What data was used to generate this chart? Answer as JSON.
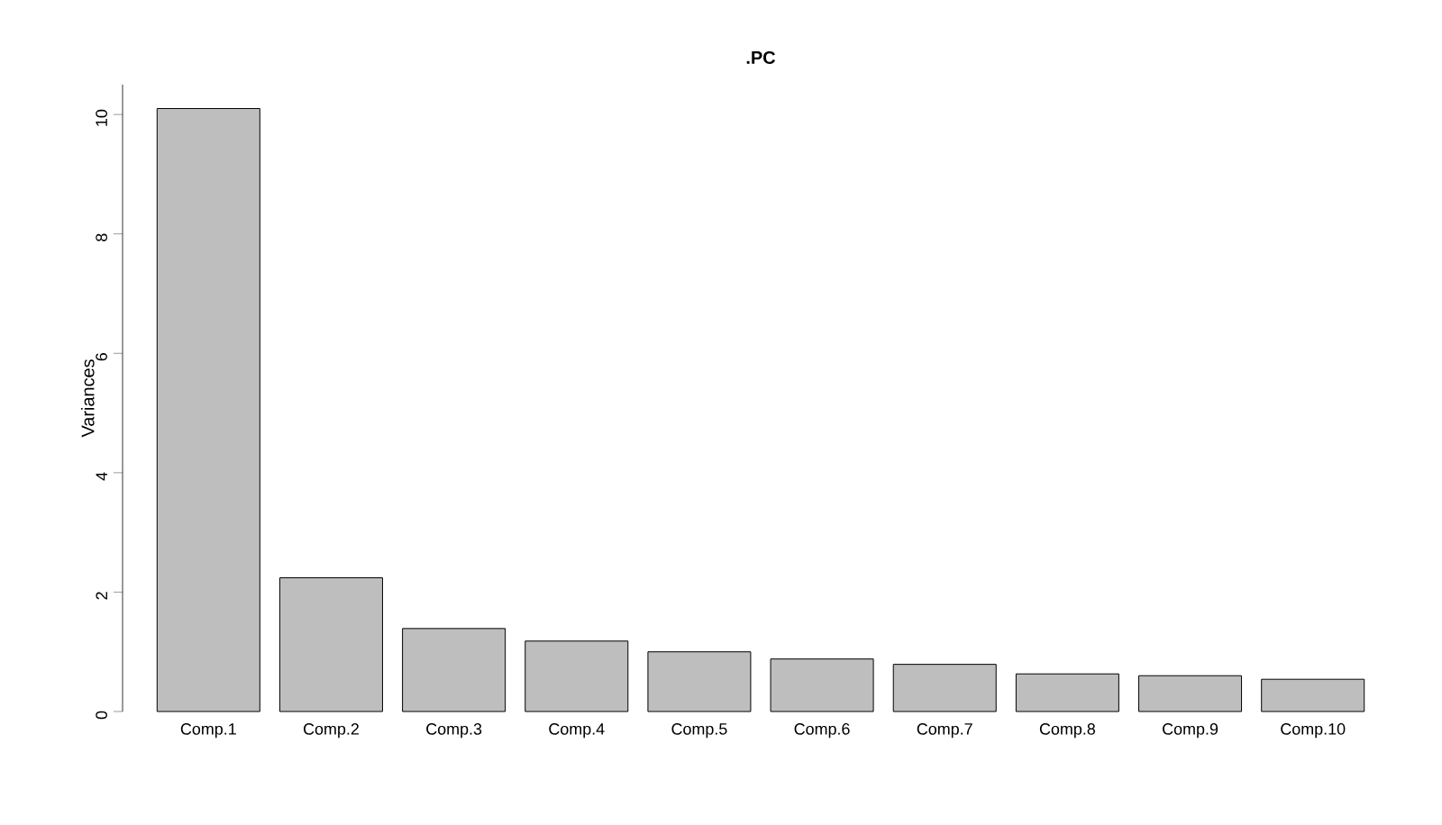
{
  "chart_data": {
    "type": "bar",
    "title": ".PC",
    "ylabel": "Variances",
    "categories": [
      "Comp.1",
      "Comp.2",
      "Comp.3",
      "Comp.4",
      "Comp.5",
      "Comp.6",
      "Comp.7",
      "Comp.8",
      "Comp.9",
      "Comp.10"
    ],
    "values": [
      10.1,
      2.24,
      1.39,
      1.18,
      1.0,
      0.88,
      0.79,
      0.63,
      0.6,
      0.54
    ],
    "color": "#bebebe",
    "ylim": [
      0,
      10.5
    ],
    "yticks": [
      0,
      2,
      4,
      6,
      8,
      10
    ],
    "grid": false
  }
}
